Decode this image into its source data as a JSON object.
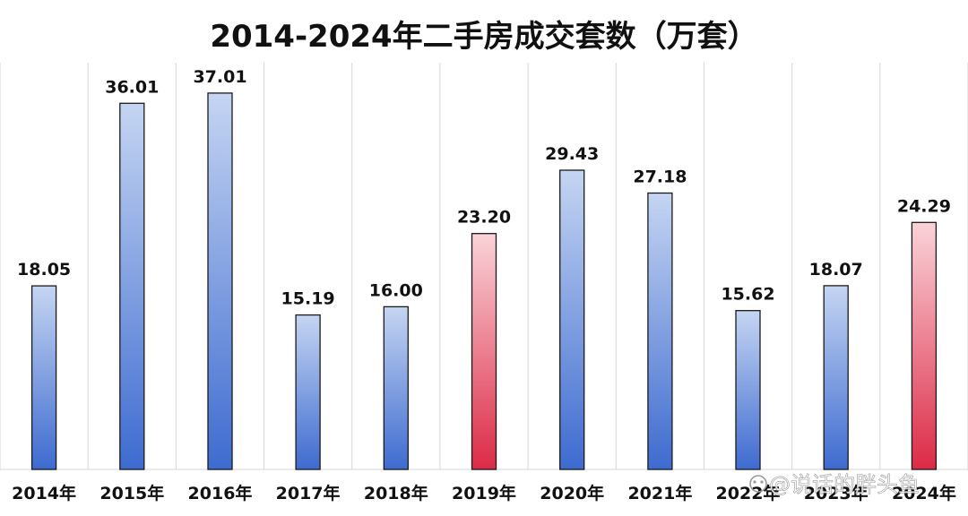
{
  "chart_data": {
    "type": "bar",
    "title": "2014-2024年二手房成交套数（万套）",
    "categories": [
      "2014年",
      "2015年",
      "2016年",
      "2017年",
      "2018年",
      "2019年",
      "2020年",
      "2021年",
      "2022年",
      "2023年",
      "2024年"
    ],
    "values": [
      18.05,
      36.01,
      37.01,
      15.19,
      16.0,
      23.2,
      29.43,
      27.18,
      15.62,
      18.07,
      24.29
    ],
    "value_labels": [
      "18.05",
      "36.01",
      "37.01",
      "15.19",
      "16.00",
      "23.20",
      "29.43",
      "27.18",
      "15.62",
      "18.07",
      "24.29"
    ],
    "highlight": [
      false,
      false,
      false,
      false,
      false,
      true,
      false,
      false,
      false,
      false,
      true
    ],
    "ylim": [
      0,
      40
    ],
    "grid": true,
    "legend": "none",
    "colors": {
      "bar_top": "#c5d5f2",
      "bar_bottom": "#3e6bd0",
      "highlight_top": "#fad3d9",
      "highlight_bottom": "#dc2a46",
      "gridline": "#d6d6d6",
      "text": "#111111"
    }
  },
  "watermark": {
    "text": "@说话的胖头鱼",
    "icon": "platform-logo-icon"
  }
}
